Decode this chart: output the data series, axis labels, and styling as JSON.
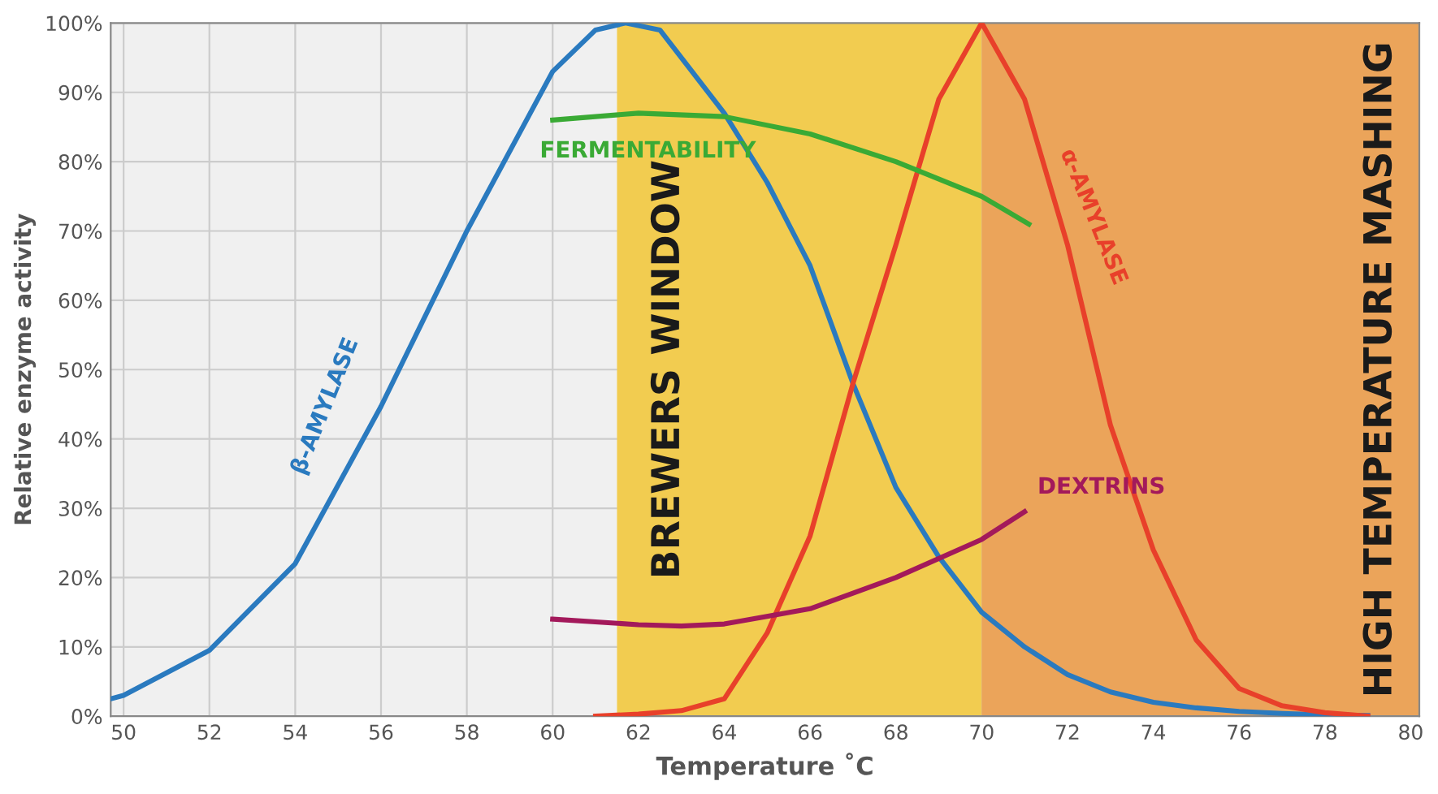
{
  "chart_data": {
    "type": "line",
    "xlabel": "Temperature ˚C",
    "ylabel": "Relative enzyme activity",
    "xlim": [
      49.7,
      80.2
    ],
    "ylim": [
      0,
      100
    ],
    "xticks": [
      50,
      52,
      54,
      56,
      58,
      60,
      62,
      64,
      66,
      68,
      70,
      72,
      74,
      76,
      78,
      80
    ],
    "yticks": [
      {
        "value": 0,
        "label": "0%"
      },
      {
        "value": 10,
        "label": "10%"
      },
      {
        "value": 20,
        "label": "20%"
      },
      {
        "value": 30,
        "label": "30%"
      },
      {
        "value": 40,
        "label": "40%"
      },
      {
        "value": 50,
        "label": "50%"
      },
      {
        "value": 60,
        "label": "60%"
      },
      {
        "value": 70,
        "label": "70%"
      },
      {
        "value": 80,
        "label": "80%"
      },
      {
        "value": 90,
        "label": "90%"
      },
      {
        "value": 100,
        "label": "100%"
      }
    ],
    "grid": true,
    "legend": false,
    "marker": "none",
    "line_style": "solid",
    "bands": [
      {
        "axis": "x",
        "from": 61.5,
        "to": 70,
        "label": "BREWERS WINDOW",
        "color": "#f2cc50"
      },
      {
        "axis": "x",
        "from": 70,
        "to": 80.2,
        "label": "HIGH TEMPERATURE MASHING",
        "color": "#eba45a"
      }
    ],
    "series": [
      {
        "name": "β-AMYLASE",
        "color": "#2a7abf",
        "x": [
          49.7,
          50,
          52,
          54,
          56,
          58,
          60,
          61,
          61.7,
          62.5,
          64,
          65,
          66,
          67,
          68,
          69,
          70,
          71,
          72,
          73,
          74,
          75,
          76,
          77,
          78,
          79
        ],
        "values": [
          2.5,
          3,
          9.5,
          22,
          44.7,
          70,
          93,
          99,
          100,
          99,
          87,
          77,
          65,
          48,
          33,
          23,
          15,
          10,
          6,
          3.5,
          2,
          1.2,
          0.7,
          0.4,
          0.2,
          0.1
        ]
      },
      {
        "name": "α-AMYLASE",
        "color": "#e8402a",
        "x": [
          61,
          62,
          63,
          64,
          65,
          66,
          67,
          68,
          69,
          70,
          71,
          72,
          73,
          74,
          75,
          76,
          77,
          78,
          79
        ],
        "values": [
          0,
          0.3,
          0.8,
          2.5,
          12,
          26,
          48,
          68,
          89,
          100,
          89,
          68,
          42,
          24,
          11,
          4,
          1.5,
          0.5,
          0
        ]
      },
      {
        "name": "FERMENTABILITY",
        "color": "#3aaa35",
        "x": [
          60,
          62,
          64,
          66,
          68,
          70,
          71.1
        ],
        "values": [
          86,
          87,
          86.5,
          84,
          80,
          75,
          71
        ]
      },
      {
        "name": "DEXTRINS",
        "color": "#a3195b",
        "x": [
          60,
          62,
          63,
          64,
          66,
          68,
          70,
          71
        ],
        "values": [
          14,
          13.2,
          13,
          13.3,
          15.5,
          20,
          25.5,
          29.5
        ]
      }
    ]
  }
}
